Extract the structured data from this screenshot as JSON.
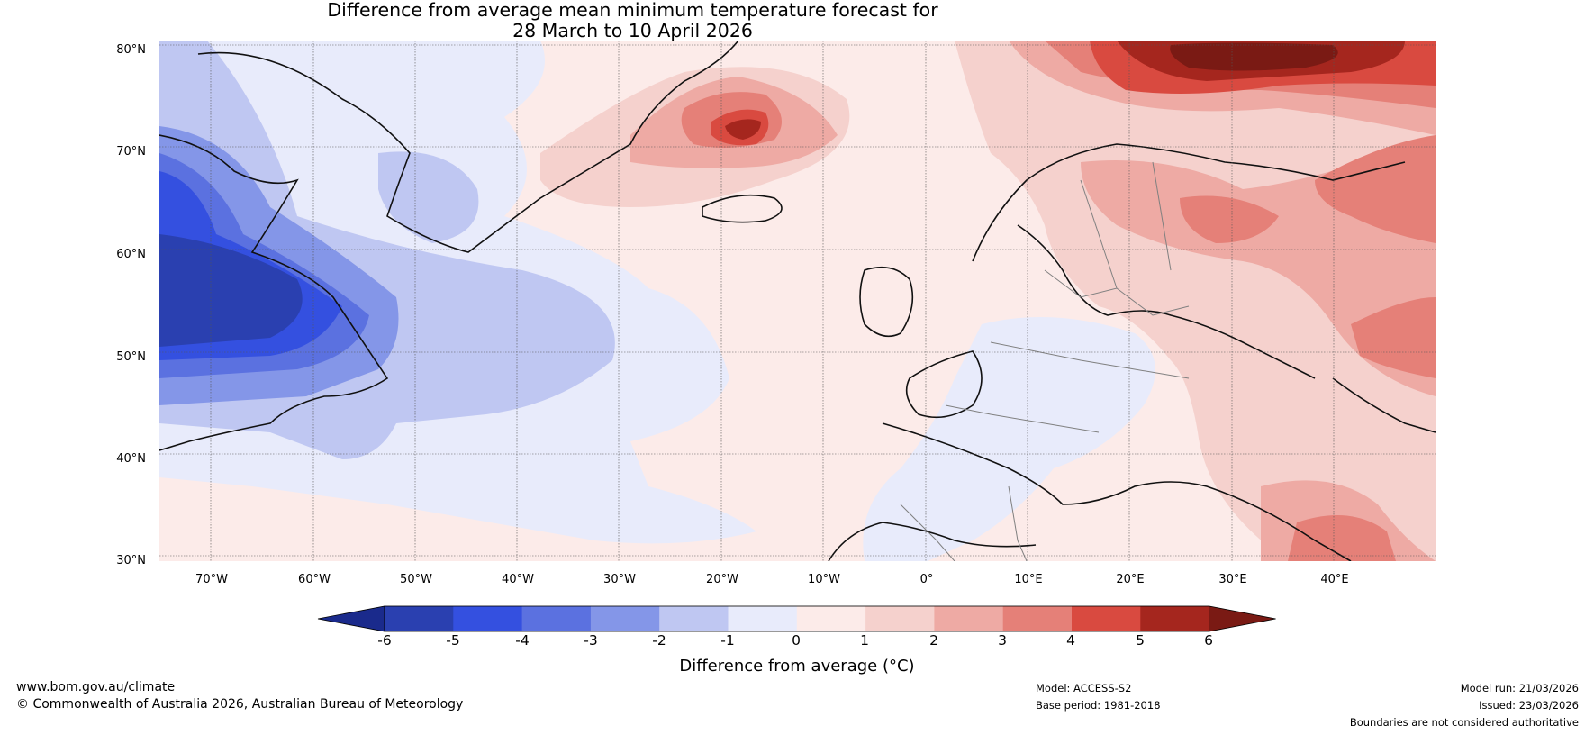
{
  "title": {
    "line1": "Difference from average mean minimum temperature forecast for",
    "line2": "28 March to 10 April 2026"
  },
  "map": {
    "lat_labels": [
      "80°N",
      "70°N",
      "60°N",
      "50°N",
      "40°N",
      "30°N"
    ],
    "lon_labels": [
      "70°W",
      "60°W",
      "50°W",
      "40°W",
      "30°W",
      "20°W",
      "10°W",
      "0°",
      "10°E",
      "20°E",
      "30°E",
      "40°E"
    ],
    "regions": [
      {
        "name": "labrador-anomaly",
        "value": -5,
        "color": "#2b42b0"
      },
      {
        "name": "newfoundland-anomaly",
        "value": -3,
        "color": "#5b71e0"
      },
      {
        "name": "north-atlantic-anomaly",
        "value": -2,
        "color": "#bfc7f2"
      },
      {
        "name": "iceland-anomaly",
        "value": 5,
        "color": "#d94a40"
      },
      {
        "name": "barents-sea-anomaly",
        "value": 6,
        "color": "#8b1e16"
      },
      {
        "name": "russia-anomaly",
        "value": 3,
        "color": "#e58078"
      }
    ]
  },
  "colorbar": {
    "ticks": [
      "-6",
      "-5",
      "-4",
      "-3",
      "-2",
      "-1",
      "0",
      "1",
      "2",
      "3",
      "4",
      "5",
      "6"
    ],
    "colors": [
      "#1a2a8c",
      "#2a40b0",
      "#3450e0",
      "#5b71e0",
      "#8496e8",
      "#bfc7f2",
      "#e8ebfb",
      "#fcebe9",
      "#f5d1cd",
      "#eeaaa4",
      "#e58078",
      "#d94a40",
      "#a5261e",
      "#7a1a14"
    ],
    "label": "Difference from average (°C)"
  },
  "footer": {
    "website": "www.bom.gov.au/climate",
    "copyright": "© Commonwealth of Australia 2026, Australian Bureau of Meteorology",
    "model": "Model: ACCESS-S2",
    "base_period": "Base period: 1981-2018",
    "model_run": "Model run: 21/03/2026",
    "issued": "Issued: 23/03/2026",
    "disclaimer": "Boundaries are not considered authoritative"
  }
}
